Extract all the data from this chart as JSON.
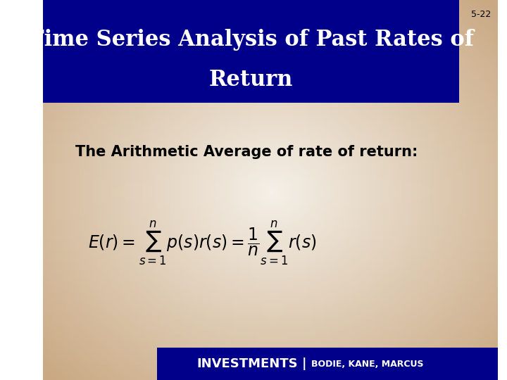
{
  "title_line1": "Time Series Analysis of Past Rates of",
  "title_line2": "Return",
  "slide_number": "5-22",
  "body_text": "The Arithmetic Average of rate of return:",
  "formula": "E(r) = \\sum_{s=1}^{n} p(s)r(s) = \\frac{1}{n}\\sum_{s=1}^{n} r(s)",
  "footer_left": "INVESTMENTS",
  "footer_right": "BODIE, KANE, MARCUS",
  "bg_color_top": "#c9a882",
  "bg_color_center": "#f5f0e8",
  "header_bg": "#00008B",
  "header_text_color": "#FFFFFF",
  "footer_bg": "#00008B",
  "footer_text_color": "#FFFFFF",
  "body_text_color": "#000000",
  "slide_number_color": "#000000"
}
